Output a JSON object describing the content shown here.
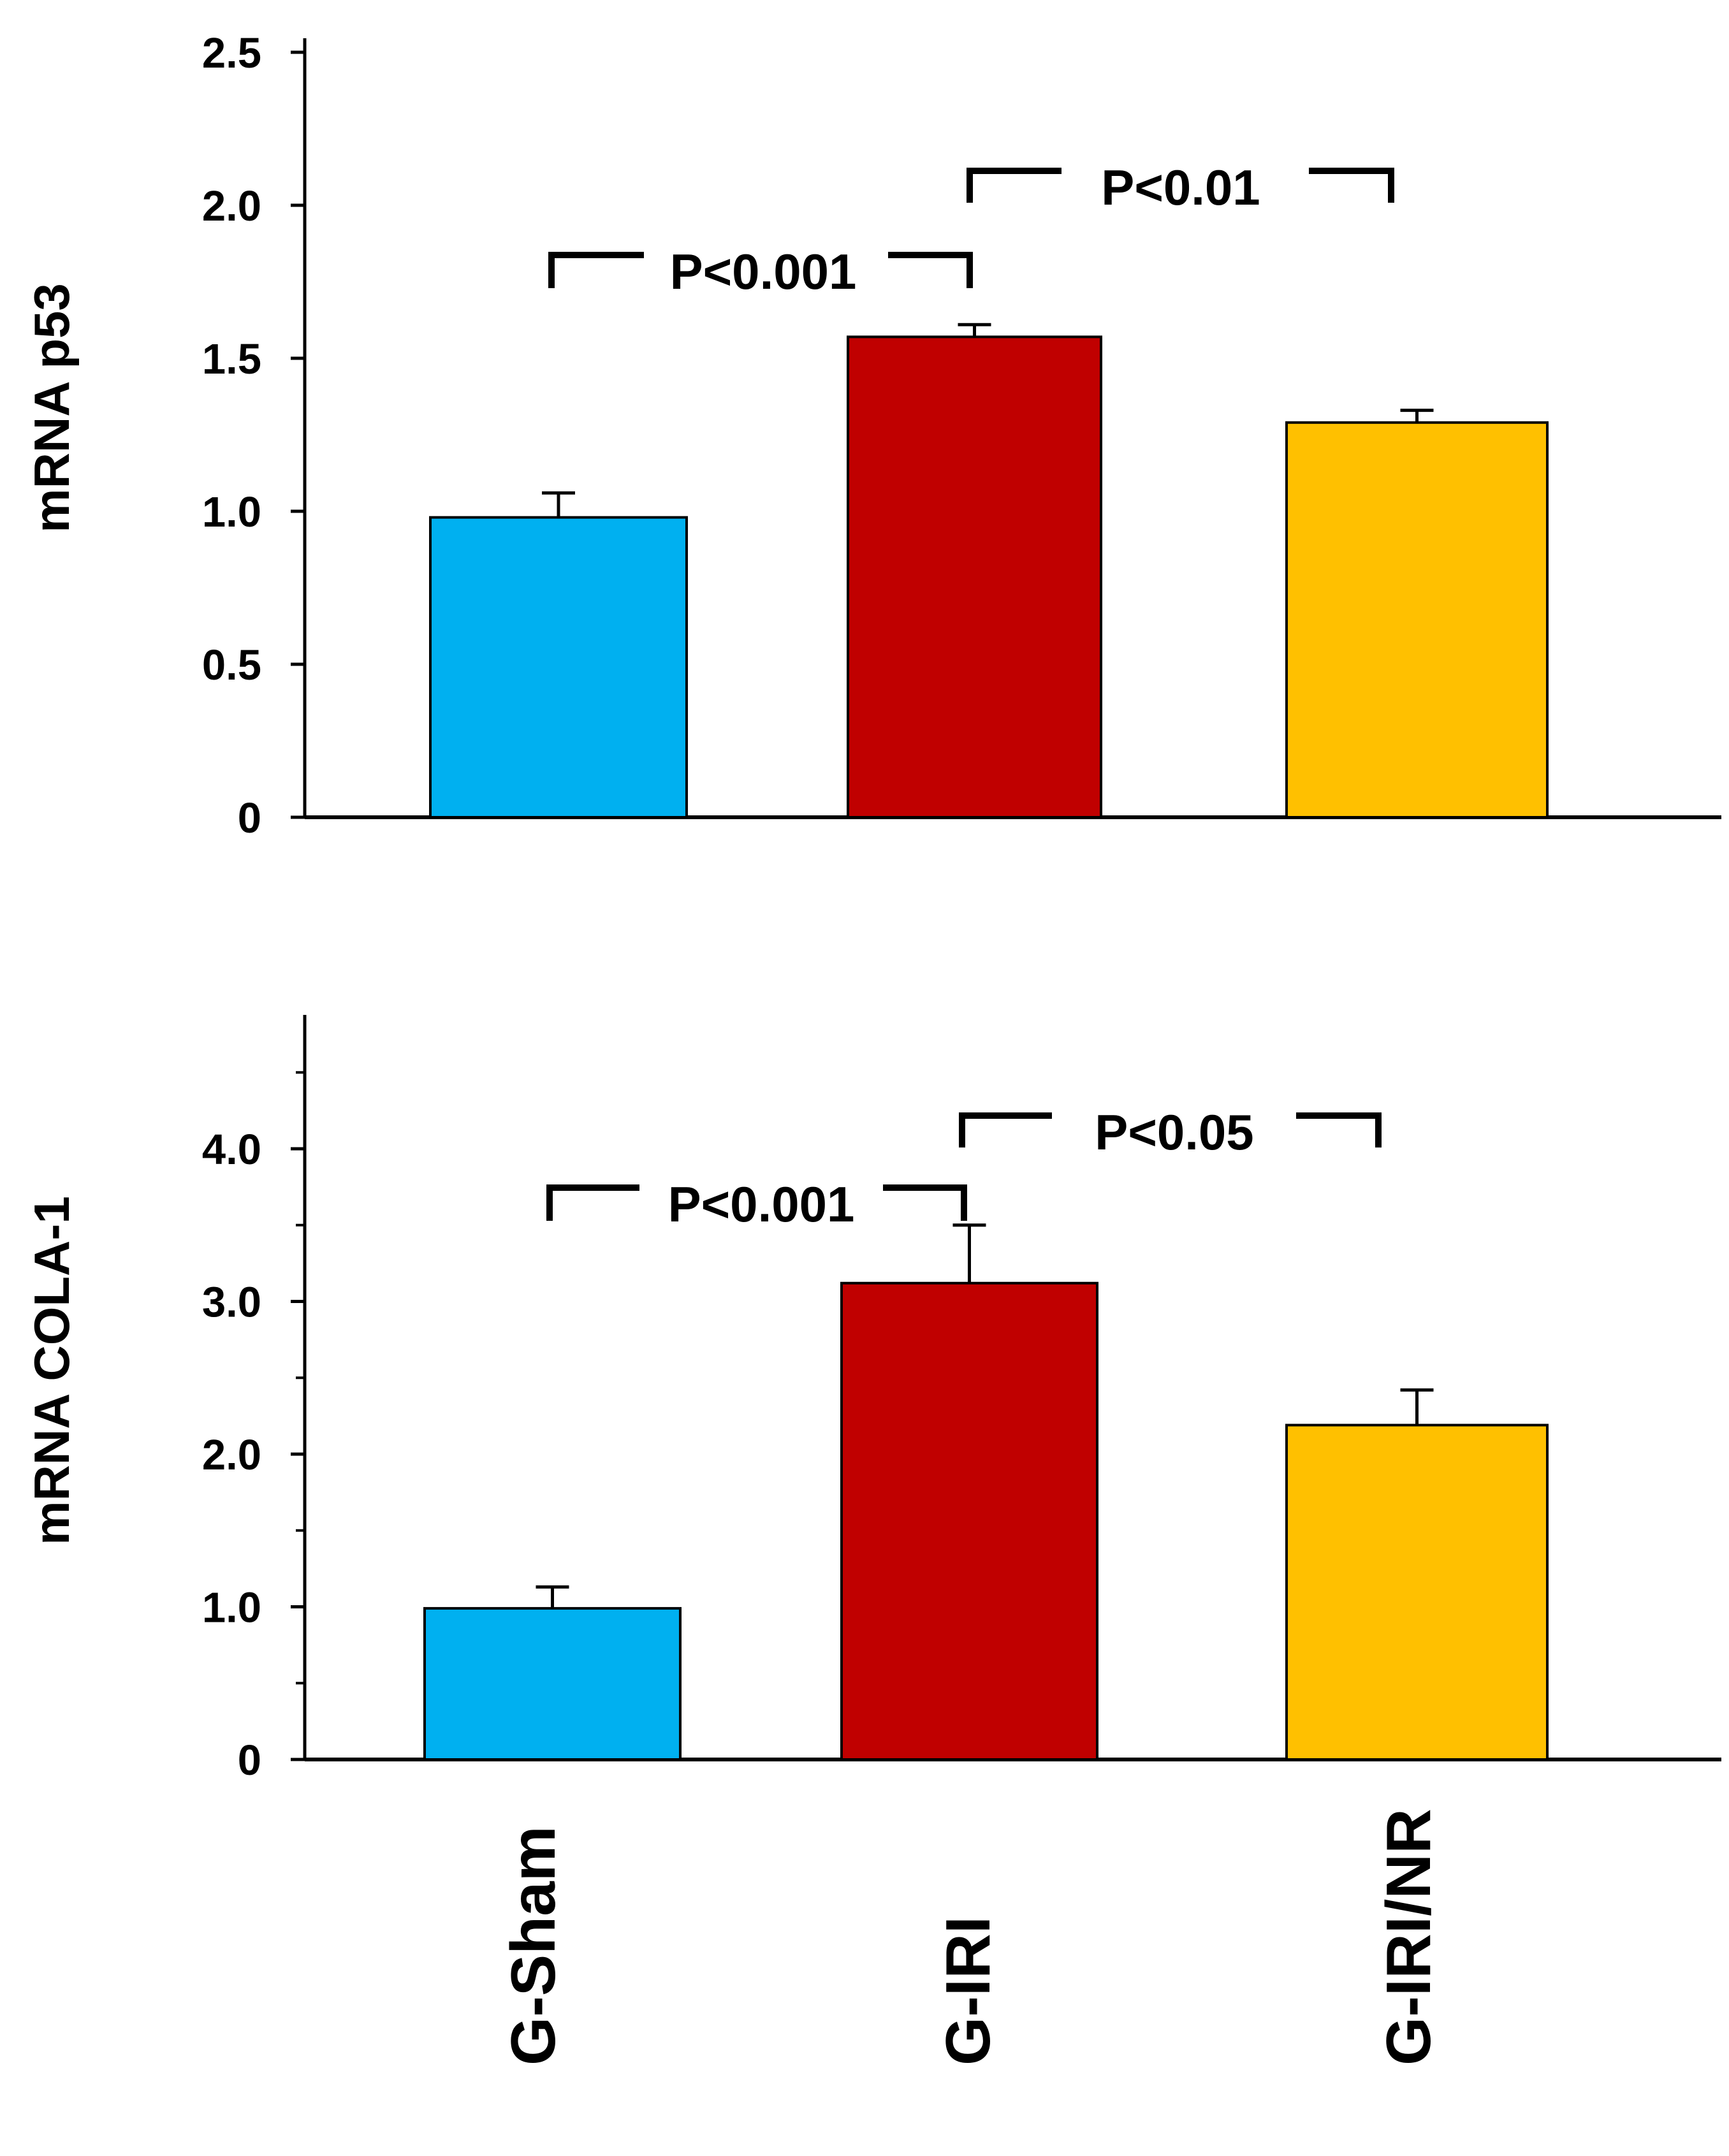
{
  "colors": {
    "g_sham": "#00B0F0",
    "g_iri": "#C00000",
    "g_iri_nr": "#FFC000",
    "axis": "#000000"
  },
  "chart_data": [
    {
      "type": "bar",
      "categories": [
        "G-Sham",
        "G-IRI",
        "G-IRI/NR"
      ],
      "values": [
        0.98,
        1.57,
        1.29
      ],
      "errors": [
        0.08,
        0.04,
        0.04
      ],
      "ylabel": "mRNA p53",
      "ylim": [
        0,
        2.5
      ],
      "yticks": [
        0,
        0.5,
        1.0,
        1.5,
        2.0,
        2.5
      ],
      "ytick_labels": [
        "0",
        "0.5",
        "1.0",
        "1.5",
        "2.0",
        "2.5"
      ],
      "significance": [
        {
          "from": 0,
          "to": 1,
          "label": "P<0.001"
        },
        {
          "from": 1,
          "to": 2,
          "label": "P<0.01"
        }
      ]
    },
    {
      "type": "bar",
      "categories": [
        "G-Sham",
        "G-IRI",
        "G-IRI/NR"
      ],
      "values": [
        0.99,
        3.12,
        2.19
      ],
      "errors": [
        0.14,
        0.38,
        0.23
      ],
      "ylabel": "mRNA COLA-1",
      "ylim": [
        0,
        5.0
      ],
      "yticks": [
        0,
        1.0,
        2.0,
        3.0,
        4.0
      ],
      "ytick_labels": [
        "0",
        "1.0",
        "2.0",
        "3.0",
        "4.0"
      ],
      "minor_yticks": [
        0.5,
        1.5,
        2.5,
        3.5,
        4.5
      ],
      "significance": [
        {
          "from": 0,
          "to": 1,
          "label": "P<0.001"
        },
        {
          "from": 1,
          "to": 2,
          "label": "P<0.05"
        }
      ]
    }
  ],
  "x_categories": [
    "G-Sham",
    "G-IRI",
    "G-IRI/NR"
  ]
}
